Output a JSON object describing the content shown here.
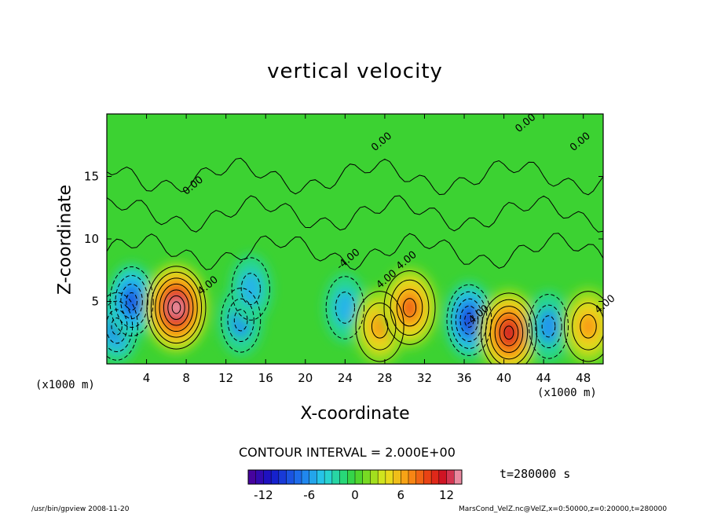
{
  "chart_data": {
    "type": "heatmap",
    "title": "vertical velocity",
    "xlabel": "X-coordinate",
    "ylabel": "Z-coordinate",
    "x_unit_left": "(x1000 m)",
    "x_unit_right": "(x1000 m)",
    "xlim": [
      0,
      50
    ],
    "ylim": [
      0,
      20
    ],
    "x_ticks": [
      "4",
      "8",
      "12",
      "16",
      "20",
      "24",
      "28",
      "32",
      "36",
      "40",
      "44",
      "48"
    ],
    "y_ticks": [
      "5",
      "10",
      "15"
    ],
    "contour_interval_text": "CONTOUR INTERVAL = 2.000E+00",
    "contour_labels": [
      "0.00",
      "0.00",
      "0.00",
      "0.00",
      "4.00",
      "4.00",
      "-4.00",
      "4.00",
      "-4.00",
      "4.00"
    ],
    "colorbar": {
      "min": -14,
      "max": 14,
      "tick_labels": [
        "-12",
        "-6",
        "0",
        "6",
        "12"
      ],
      "tick_values": [
        -12,
        -6,
        0,
        6,
        12
      ]
    },
    "features": [
      {
        "x": 1.0,
        "z": 3.0,
        "value": -8
      },
      {
        "x": 2.5,
        "z": 5.0,
        "value": -9
      },
      {
        "x": 7.0,
        "z": 4.5,
        "value": 14
      },
      {
        "x": 13.5,
        "z": 3.5,
        "value": -6
      },
      {
        "x": 14.5,
        "z": 6.0,
        "value": -5
      },
      {
        "x": 24.0,
        "z": 4.5,
        "value": -5
      },
      {
        "x": 27.5,
        "z": 3.0,
        "value": 7
      },
      {
        "x": 30.5,
        "z": 4.5,
        "value": 9
      },
      {
        "x": 36.5,
        "z": 3.5,
        "value": -10
      },
      {
        "x": 40.5,
        "z": 2.5,
        "value": 12
      },
      {
        "x": 44.5,
        "z": 3.0,
        "value": -6
      },
      {
        "x": 48.5,
        "z": 3.0,
        "value": 7
      }
    ]
  },
  "time_label": "t=280000 s",
  "footer_left": "/usr/bin/gpview   2008-11-20",
  "footer_right": "MarsCond_VelZ.nc@VelZ,x=0:50000,z=0:20000,t=280000"
}
